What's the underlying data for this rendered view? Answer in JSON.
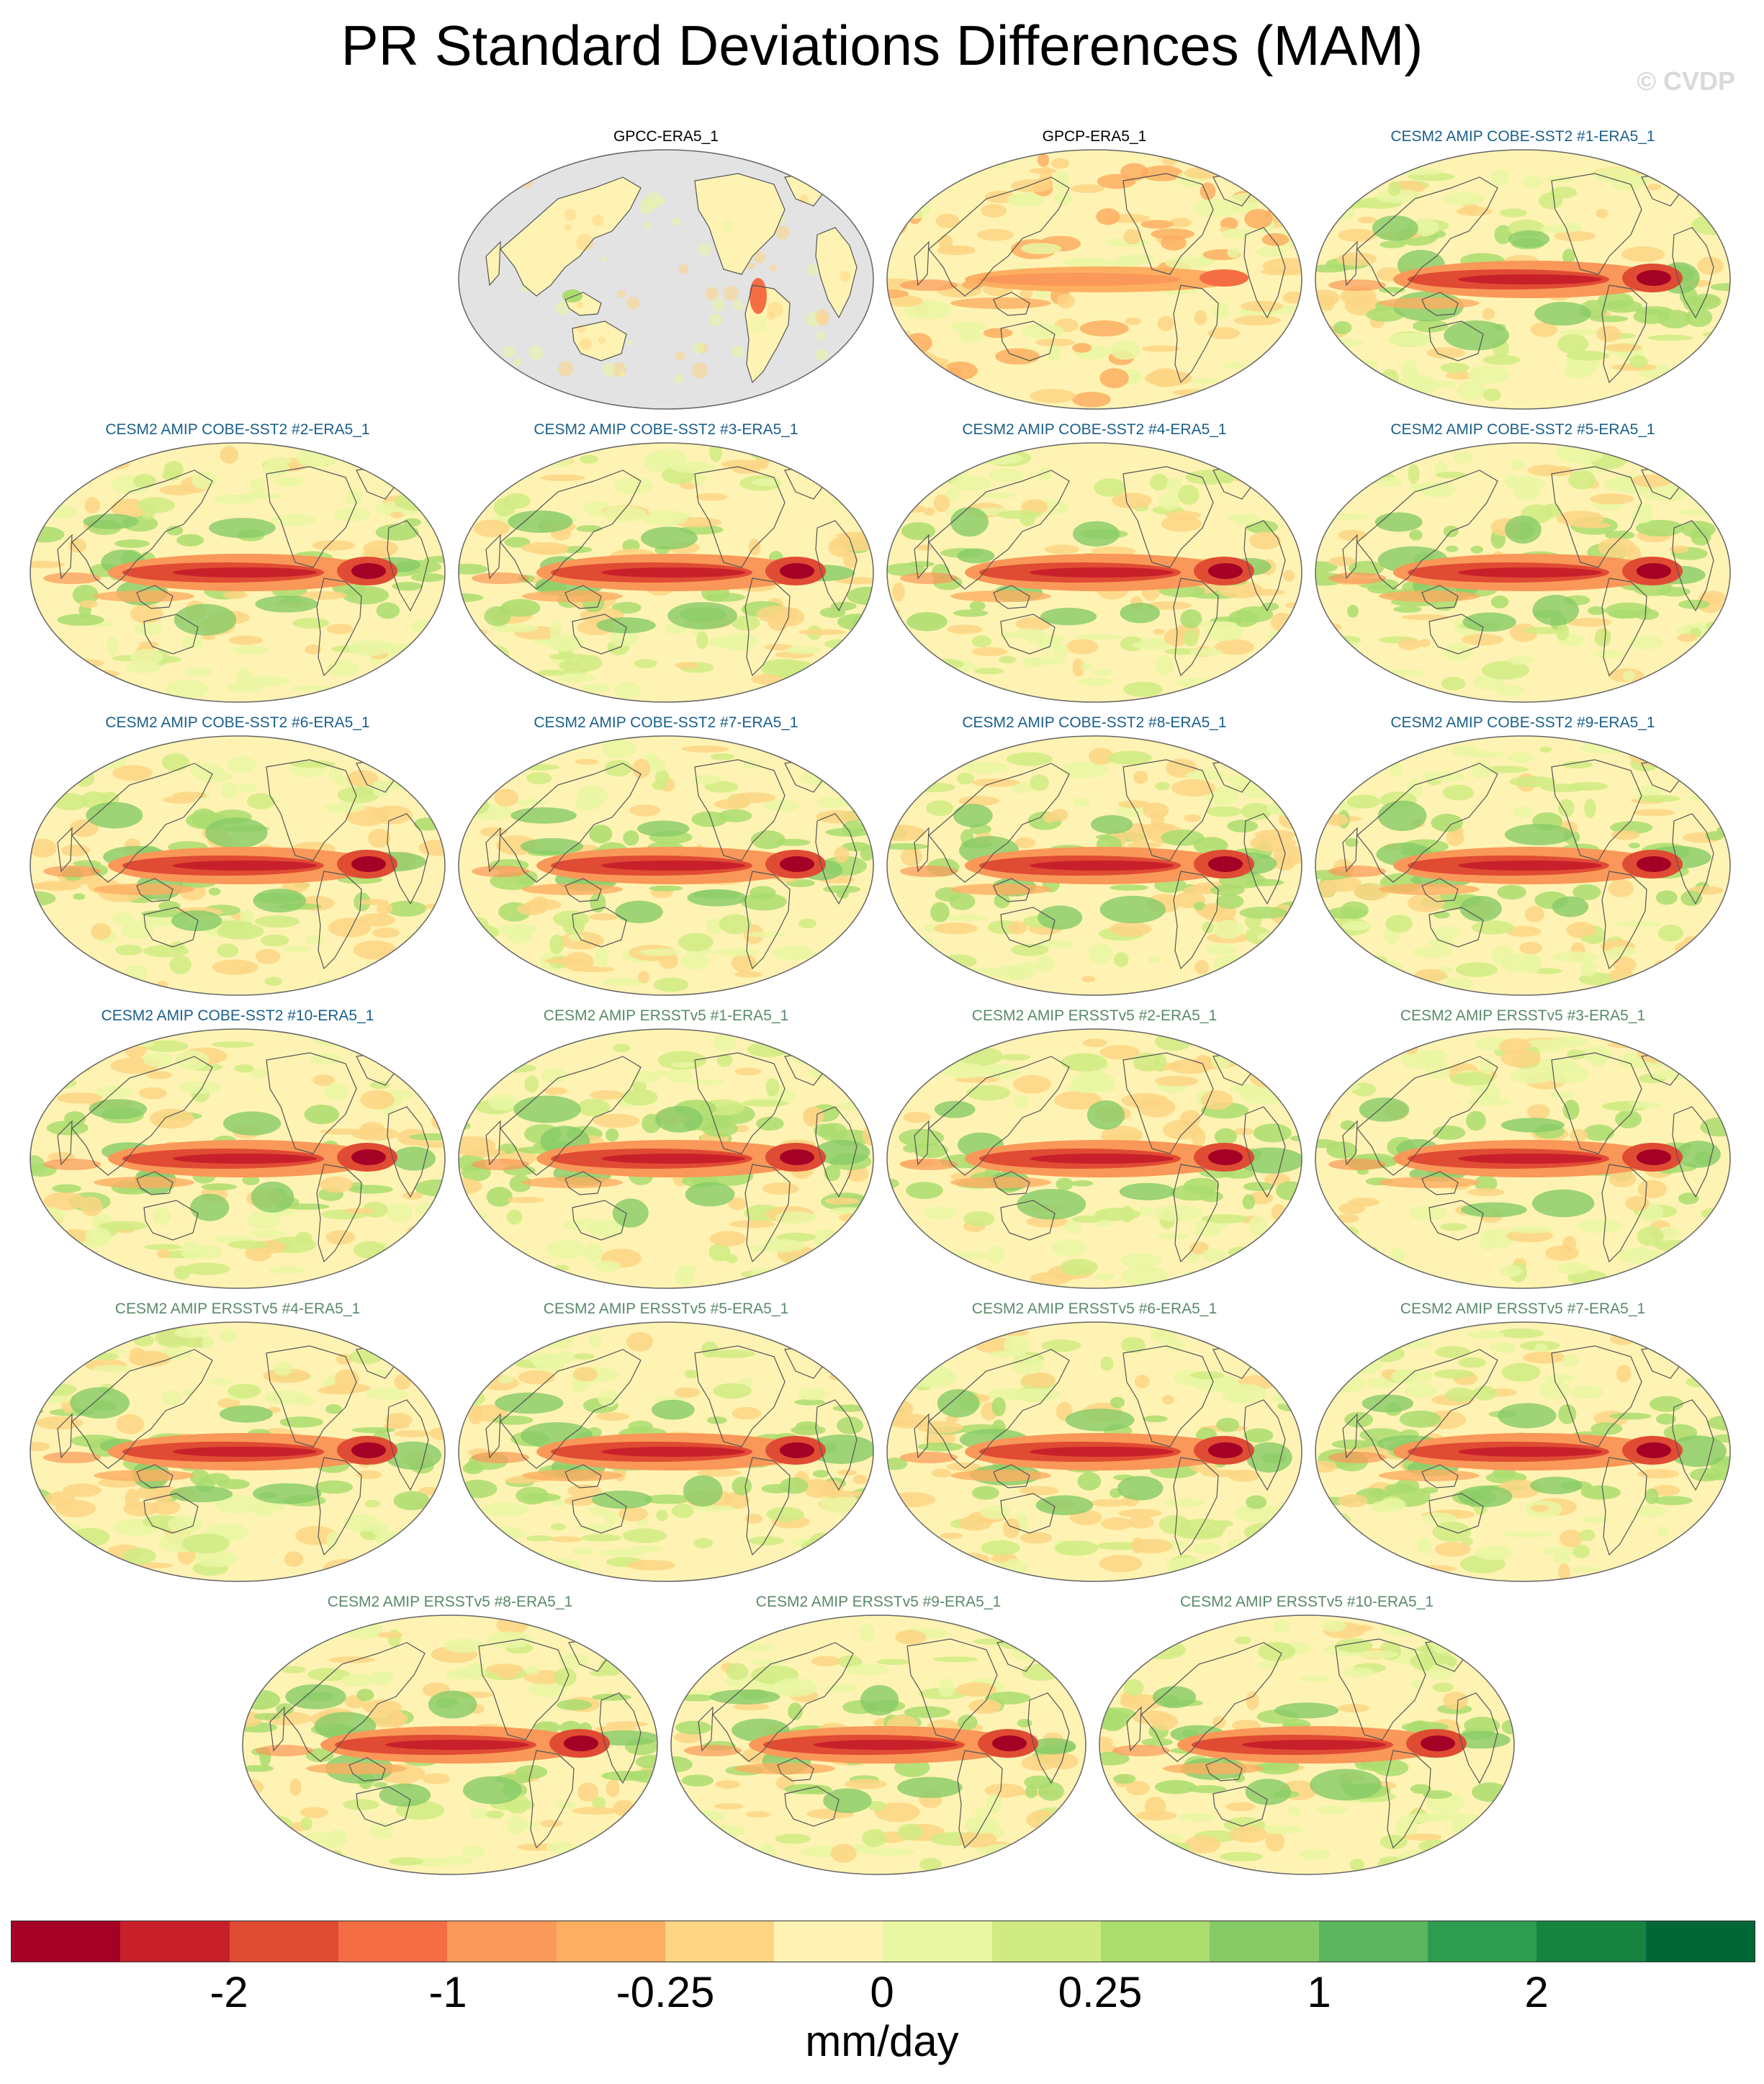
{
  "title": "PR Standard Deviations Differences (MAM)",
  "watermark": "© CVDP",
  "panels": [
    {
      "label": "GPCC-ERA5_1",
      "kind": "land",
      "color": "#000000",
      "seed": 1
    },
    {
      "label": "GPCP-ERA5_1",
      "kind": "obs",
      "color": "#000000",
      "seed": 2
    },
    {
      "label": "CESM2 AMIP COBE-SST2 #1-ERA5_1",
      "kind": "model",
      "color": "#1a5f8a",
      "seed": 3
    },
    {
      "label": "CESM2 AMIP COBE-SST2 #2-ERA5_1",
      "kind": "model",
      "color": "#1a5f8a",
      "seed": 4
    },
    {
      "label": "CESM2 AMIP COBE-SST2 #3-ERA5_1",
      "kind": "model",
      "color": "#1a5f8a",
      "seed": 5
    },
    {
      "label": "CESM2 AMIP COBE-SST2 #4-ERA5_1",
      "kind": "model",
      "color": "#1a5f8a",
      "seed": 6
    },
    {
      "label": "CESM2 AMIP COBE-SST2 #5-ERA5_1",
      "kind": "model",
      "color": "#1a5f8a",
      "seed": 7
    },
    {
      "label": "CESM2 AMIP COBE-SST2 #6-ERA5_1",
      "kind": "model",
      "color": "#1a5f8a",
      "seed": 8
    },
    {
      "label": "CESM2 AMIP COBE-SST2 #7-ERA5_1",
      "kind": "model",
      "color": "#1a5f8a",
      "seed": 9
    },
    {
      "label": "CESM2 AMIP COBE-SST2 #8-ERA5_1",
      "kind": "model",
      "color": "#1a5f8a",
      "seed": 10
    },
    {
      "label": "CESM2 AMIP COBE-SST2 #9-ERA5_1",
      "kind": "model",
      "color": "#1a5f8a",
      "seed": 11
    },
    {
      "label": "CESM2 AMIP COBE-SST2 #10-ERA5_1",
      "kind": "model",
      "color": "#1a5f8a",
      "seed": 12
    },
    {
      "label": "CESM2 AMIP ERSSTv5 #1-ERA5_1",
      "kind": "model",
      "color": "#5a8a6a",
      "seed": 13
    },
    {
      "label": "CESM2 AMIP ERSSTv5 #2-ERA5_1",
      "kind": "model",
      "color": "#5a8a6a",
      "seed": 14
    },
    {
      "label": "CESM2 AMIP ERSSTv5 #3-ERA5_1",
      "kind": "model",
      "color": "#5a8a6a",
      "seed": 15
    },
    {
      "label": "CESM2 AMIP ERSSTv5 #4-ERA5_1",
      "kind": "model",
      "color": "#5a8a6a",
      "seed": 16
    },
    {
      "label": "CESM2 AMIP ERSSTv5 #5-ERA5_1",
      "kind": "model",
      "color": "#5a8a6a",
      "seed": 17
    },
    {
      "label": "CESM2 AMIP ERSSTv5 #6-ERA5_1",
      "kind": "model",
      "color": "#5a8a6a",
      "seed": 18
    },
    {
      "label": "CESM2 AMIP ERSSTv5 #7-ERA5_1",
      "kind": "model",
      "color": "#5a8a6a",
      "seed": 19
    },
    {
      "label": "CESM2 AMIP ERSSTv5 #8-ERA5_1",
      "kind": "model",
      "color": "#5a8a6a",
      "seed": 20
    },
    {
      "label": "CESM2 AMIP ERSSTv5 #9-ERA5_1",
      "kind": "model",
      "color": "#5a8a6a",
      "seed": 21
    },
    {
      "label": "CESM2 AMIP ERSSTv5 #10-ERA5_1",
      "kind": "model",
      "color": "#5a8a6a",
      "seed": 22
    }
  ],
  "colorbar": {
    "colors": [
      "#a50026",
      "#c8202b",
      "#e04b33",
      "#f46d43",
      "#f99858",
      "#fdae61",
      "#fdd584",
      "#fff3b3",
      "#e9f6a2",
      "#d0eb82",
      "#aadc6e",
      "#86cb66",
      "#5cb55f",
      "#2e9d50",
      "#16843f",
      "#006837"
    ],
    "tick_labels": [
      "-2",
      "-1",
      "-0.25",
      "0",
      "0.25",
      "1",
      "2"
    ],
    "units": "mm/day"
  }
}
